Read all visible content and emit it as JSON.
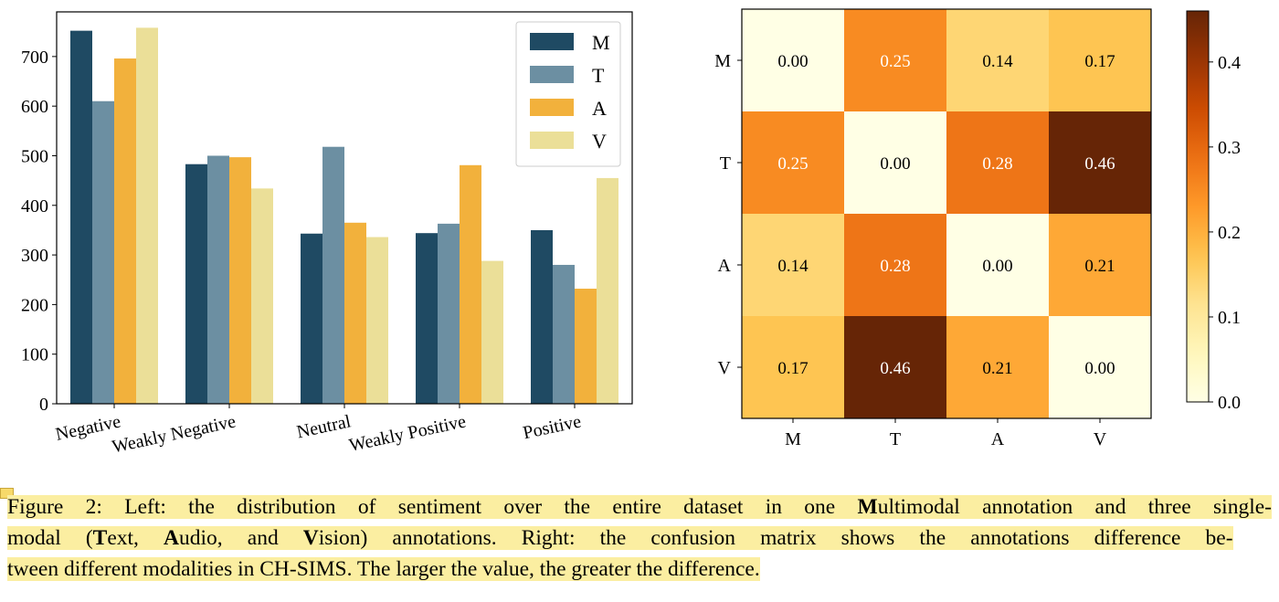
{
  "chart_data": [
    {
      "type": "bar",
      "categories": [
        "Negative",
        "Weakly Negative",
        "Neutral",
        "Weakly Positive",
        "Positive"
      ],
      "series": [
        {
          "name": "M",
          "color": "#1f4a63",
          "values": [
            752,
            483,
            343,
            344,
            350
          ]
        },
        {
          "name": "T",
          "color": "#6c8fa2",
          "values": [
            610,
            500,
            518,
            363,
            280
          ]
        },
        {
          "name": "A",
          "color": "#f2b13c",
          "values": [
            696,
            497,
            365,
            481,
            232
          ]
        },
        {
          "name": "V",
          "color": "#ebdf98",
          "values": [
            758,
            434,
            336,
            288,
            455
          ]
        }
      ],
      "ylim": [
        0,
        790
      ],
      "yticks": [
        0,
        100,
        200,
        300,
        400,
        500,
        600,
        700
      ],
      "legend_position": "top-right",
      "grid": false
    },
    {
      "type": "heatmap",
      "row_labels": [
        "M",
        "T",
        "A",
        "V"
      ],
      "col_labels": [
        "M",
        "T",
        "A",
        "V"
      ],
      "values": [
        [
          0.0,
          0.25,
          0.14,
          0.17
        ],
        [
          0.25,
          0.0,
          0.28,
          0.46
        ],
        [
          0.14,
          0.28,
          0.0,
          0.21
        ],
        [
          0.17,
          0.46,
          0.21,
          0.0
        ]
      ],
      "colormap": "YlOrBr",
      "colorbar_range": [
        0.0,
        0.46
      ],
      "colorbar_ticks": [
        "0.0",
        "0.1",
        "0.2",
        "0.3",
        "0.4"
      ]
    }
  ],
  "caption": {
    "lines": [
      [
        {
          "text": "Figure 2: Left: the distribution of sentiment over the entire dataset in one "
        },
        {
          "text": "M",
          "bold": true
        },
        {
          "text": "ultimodal annotation and three single-"
        }
      ],
      [
        {
          "text": "modal ("
        },
        {
          "text": "T",
          "bold": true
        },
        {
          "text": "ext, "
        },
        {
          "text": "A",
          "bold": true
        },
        {
          "text": "udio, and "
        },
        {
          "text": "V",
          "bold": true
        },
        {
          "text": "ision) annotations.  Right:  the confusion matrix shows the annotations difference be-"
        }
      ],
      [
        {
          "text": "tween different modalities in CH-SIMS. The larger the value, the greater the difference."
        }
      ]
    ]
  }
}
